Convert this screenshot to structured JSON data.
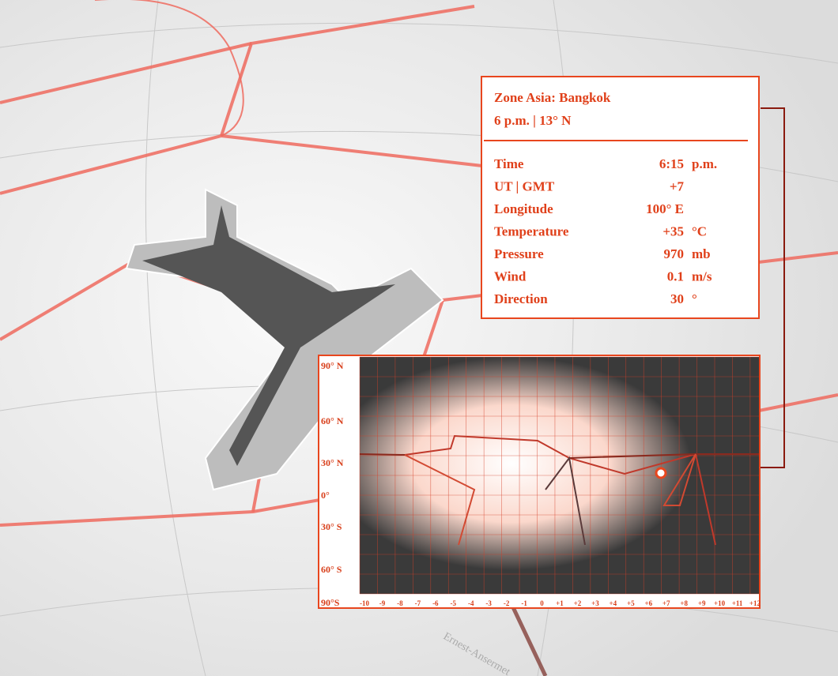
{
  "info_panel": {
    "title": "Zone Asia: Bangkok",
    "subtitle": "6 p.m. | 13° N",
    "rows": [
      {
        "label": "Time",
        "value": "6:15",
        "unit": "p.m."
      },
      {
        "label": "UT | GMT",
        "value": "+7"
      },
      {
        "label": "Longitude",
        "value": "100° E"
      },
      {
        "label": "Temperature",
        "value": "+35",
        "unit": "°C"
      },
      {
        "label": "Pressure",
        "value": "970",
        "unit": "mb"
      },
      {
        "label": "Wind",
        "value": "0.1",
        "unit": "m/s"
      },
      {
        "label": "Direction",
        "value": "30",
        "unit": "°"
      }
    ]
  },
  "map": {
    "latitude_labels": [
      "90° N",
      "60° N",
      "30° N",
      "0°",
      "30° S",
      "60° S",
      "90°S"
    ],
    "timezone_labels": [
      "-10",
      "-9",
      "-8",
      "-7",
      "-6",
      "-5",
      "-4",
      "-3",
      "-2",
      "-1",
      "0",
      "+1",
      "+2",
      "+3",
      "+4",
      "+5",
      "+6",
      "+7",
      "+8",
      "+9",
      "+10",
      "+11",
      "+12"
    ]
  },
  "street_label": "Ernest-Ansermet"
}
